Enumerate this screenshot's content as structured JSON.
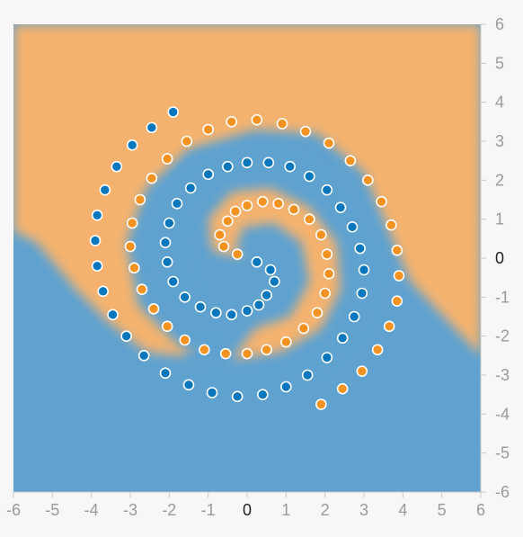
{
  "chart_data": {
    "type": "scatter",
    "title": "",
    "xlabel": "",
    "ylabel": "",
    "xlim": [
      -6,
      6
    ],
    "ylim": [
      -6,
      6
    ],
    "x_ticks": [
      "-6",
      "-5",
      "-4",
      "-3",
      "-2",
      "-1",
      "0",
      "1",
      "2",
      "3",
      "4",
      "5",
      "6"
    ],
    "y_ticks": [
      "6",
      "5",
      "4",
      "3",
      "2",
      "1",
      "0",
      "-1",
      "-2",
      "-3",
      "-4",
      "-5",
      "-6"
    ],
    "grid": false,
    "colors": {
      "positive": "#f59322",
      "negative": "#0877bd",
      "region_positive": "#f4b26e",
      "region_negative": "#5fa2d0"
    },
    "spiral": {
      "points_per_arm": 100,
      "theta_max_turns": 1.75,
      "r_max": 5.0
    },
    "series": [
      {
        "class": "orange",
        "points": [
          [
            -0.25,
            0.1
          ],
          [
            -0.6,
            0.3
          ],
          [
            -0.7,
            0.6
          ],
          [
            -0.5,
            0.95
          ],
          [
            -0.3,
            1.2
          ],
          [
            0,
            1.35
          ],
          [
            0.4,
            1.45
          ],
          [
            0.8,
            1.4
          ],
          [
            1.2,
            1.25
          ],
          [
            1.6,
            1.0
          ],
          [
            1.9,
            0.6
          ],
          [
            2.05,
            0.1
          ],
          [
            2.1,
            -0.4
          ],
          [
            2.0,
            -0.9
          ],
          [
            1.8,
            -1.4
          ],
          [
            1.45,
            -1.8
          ],
          [
            1.0,
            -2.15
          ],
          [
            0.5,
            -2.35
          ],
          [
            0,
            -2.45
          ],
          [
            -0.55,
            -2.45
          ],
          [
            -1.1,
            -2.35
          ],
          [
            -1.6,
            -2.1
          ],
          [
            -2.05,
            -1.75
          ],
          [
            -2.4,
            -1.3
          ],
          [
            -2.7,
            -0.8
          ],
          [
            -2.9,
            -0.25
          ],
          [
            -3.0,
            0.3
          ],
          [
            -2.95,
            0.9
          ],
          [
            -2.75,
            1.5
          ],
          [
            -2.45,
            2.05
          ],
          [
            -2.05,
            2.55
          ],
          [
            -1.55,
            3.0
          ],
          [
            -1.0,
            3.3
          ],
          [
            -0.4,
            3.5
          ],
          [
            0.25,
            3.55
          ],
          [
            0.9,
            3.45
          ],
          [
            1.5,
            3.25
          ],
          [
            2.1,
            2.95
          ],
          [
            2.65,
            2.5
          ],
          [
            3.1,
            2.0
          ],
          [
            3.45,
            1.45
          ],
          [
            3.7,
            0.85
          ],
          [
            3.85,
            0.2
          ],
          [
            3.9,
            -0.45
          ],
          [
            3.85,
            -1.1
          ],
          [
            3.65,
            -1.75
          ],
          [
            3.35,
            -2.35
          ],
          [
            2.95,
            -2.9
          ],
          [
            2.45,
            -3.35
          ],
          [
            1.9,
            -3.75
          ]
        ]
      },
      {
        "class": "blue",
        "points": [
          [
            0.25,
            -0.1
          ],
          [
            0.6,
            -0.3
          ],
          [
            0.7,
            -0.6
          ],
          [
            0.5,
            -0.95
          ],
          [
            0.3,
            -1.2
          ],
          [
            0,
            -1.35
          ],
          [
            -0.4,
            -1.45
          ],
          [
            -0.8,
            -1.4
          ],
          [
            -1.2,
            -1.25
          ],
          [
            -1.6,
            -1.0
          ],
          [
            -1.9,
            -0.6
          ],
          [
            -2.05,
            -0.1
          ],
          [
            -2.1,
            0.4
          ],
          [
            -2.0,
            0.9
          ],
          [
            -1.8,
            1.4
          ],
          [
            -1.45,
            1.8
          ],
          [
            -1.0,
            2.15
          ],
          [
            -0.5,
            2.35
          ],
          [
            0,
            2.45
          ],
          [
            0.55,
            2.45
          ],
          [
            1.1,
            2.35
          ],
          [
            1.6,
            2.1
          ],
          [
            2.05,
            1.75
          ],
          [
            2.4,
            1.3
          ],
          [
            2.7,
            0.8
          ],
          [
            2.9,
            0.25
          ],
          [
            3.0,
            -0.3
          ],
          [
            2.95,
            -0.9
          ],
          [
            2.75,
            -1.5
          ],
          [
            2.45,
            -2.05
          ],
          [
            2.05,
            -2.55
          ],
          [
            1.55,
            -3.0
          ],
          [
            1.0,
            -3.3
          ],
          [
            0.4,
            -3.5
          ],
          [
            -0.25,
            -3.55
          ],
          [
            -0.9,
            -3.45
          ],
          [
            -1.5,
            -3.25
          ],
          [
            -2.1,
            -2.95
          ],
          [
            -2.65,
            -2.5
          ],
          [
            -3.1,
            -2.0
          ],
          [
            -3.45,
            -1.45
          ],
          [
            -3.7,
            -0.85
          ],
          [
            -3.85,
            -0.2
          ],
          [
            -3.9,
            0.45
          ],
          [
            -3.85,
            1.1
          ],
          [
            -3.65,
            1.75
          ],
          [
            -3.35,
            2.35
          ],
          [
            -2.95,
            2.9
          ],
          [
            -2.45,
            3.35
          ],
          [
            -1.9,
            3.75
          ]
        ]
      }
    ]
  }
}
